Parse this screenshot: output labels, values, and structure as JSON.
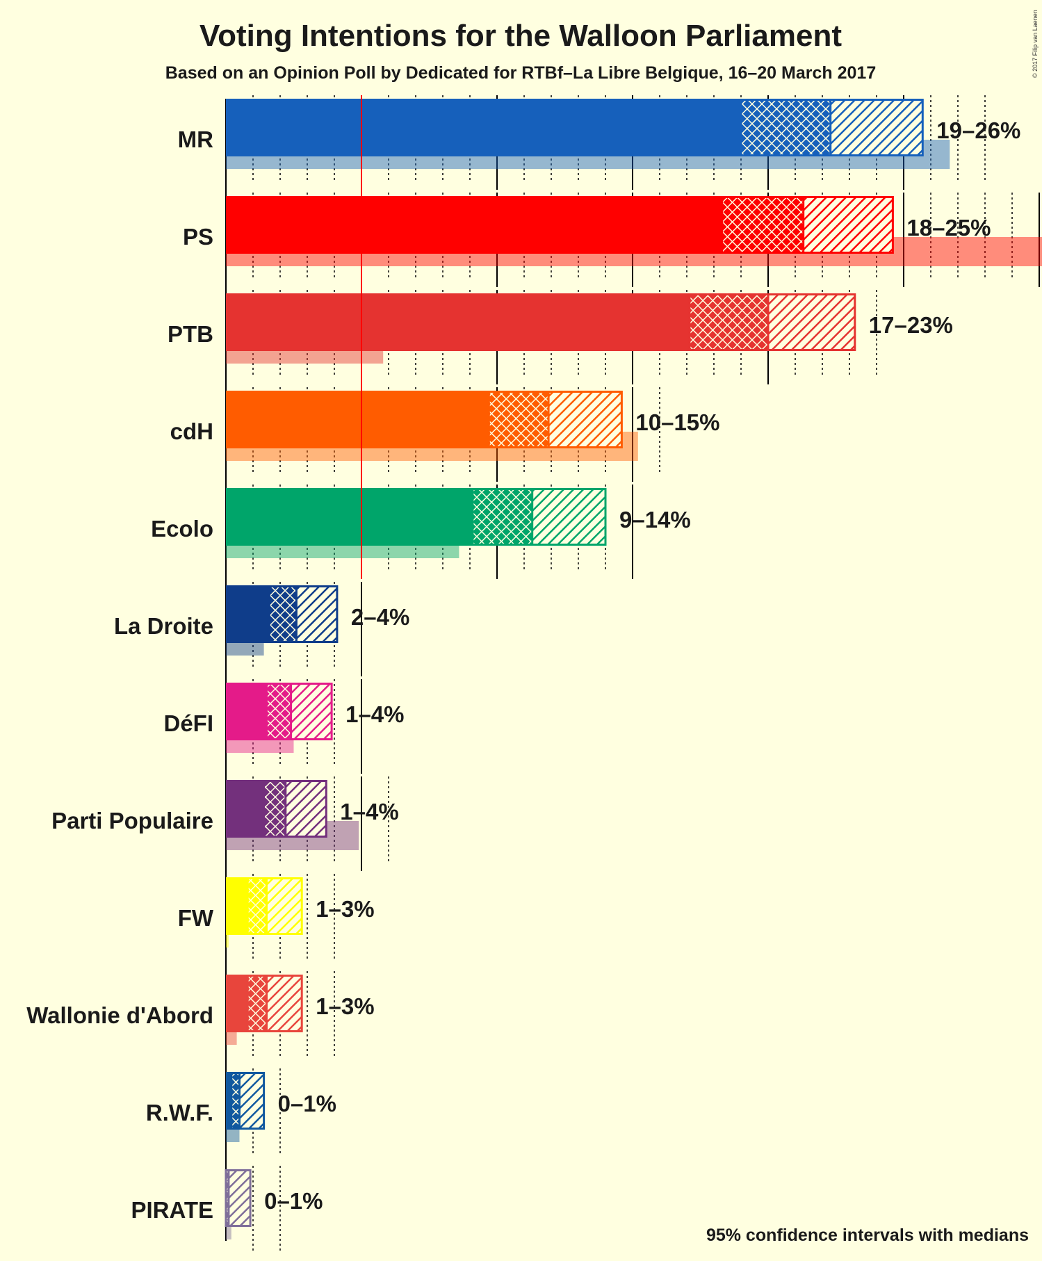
{
  "chart_data": {
    "type": "bar",
    "orientation": "horizontal",
    "title": "Voting Intentions for the Walloon Parliament",
    "subtitle": "Based on an Opinion Poll by Dedicated for RTBf–La Libre Belgique, 16–20 March 2017",
    "footnote": "95% confidence intervals with medians",
    "copyright": "© 2017 Filip van Laenen",
    "threshold": 5,
    "legend": "none",
    "parties": [
      {
        "name": "MR",
        "color": "#1660BB",
        "low": 19,
        "median": 22.3,
        "high": 25.7,
        "previous": 26.7,
        "range_label": "19–26%"
      },
      {
        "name": "PS",
        "color": "#FF0000",
        "low": 18.3,
        "median": 21.3,
        "high": 24.6,
        "previous": 30.9,
        "range_label": "18–25%"
      },
      {
        "name": "PTB",
        "color": "#E53330",
        "low": 17.1,
        "median": 20,
        "high": 23.2,
        "previous": 5.8,
        "range_label": "17–23%"
      },
      {
        "name": "cdH",
        "color": "#FF5C00",
        "low": 9.7,
        "median": 11.9,
        "high": 14.6,
        "previous": 15.2,
        "range_label": "10–15%"
      },
      {
        "name": "Ecolo",
        "color": "#00A56A",
        "low": 9.1,
        "median": 11.3,
        "high": 14,
        "previous": 8.6,
        "range_label": "9–14%"
      },
      {
        "name": "La Droite",
        "color": "#0F3D8A",
        "low": 1.6,
        "median": 2.6,
        "high": 4.1,
        "previous": 1.4,
        "range_label": "2–4%"
      },
      {
        "name": "DéFI",
        "color": "#E41B89",
        "low": 1.5,
        "median": 2.4,
        "high": 3.9,
        "previous": 2.5,
        "range_label": "1–4%"
      },
      {
        "name": "Parti Populaire",
        "color": "#73307C",
        "low": 1.4,
        "median": 2.2,
        "high": 3.7,
        "previous": 4.9,
        "range_label": "1–4%"
      },
      {
        "name": "FW",
        "color": "#FFFF00",
        "low": 0.8,
        "median": 1.5,
        "high": 2.8,
        "previous": 0.1,
        "range_label": "1–3%"
      },
      {
        "name": "Wallonie d'Abord",
        "color": "#E8453C",
        "low": 0.8,
        "median": 1.5,
        "high": 2.8,
        "previous": 0.4,
        "range_label": "1–3%"
      },
      {
        "name": "R.W.F.",
        "color": "#10589F",
        "low": 0.2,
        "median": 0.5,
        "high": 1.4,
        "previous": 0.5,
        "range_label": "0–1%"
      },
      {
        "name": "PIRATE",
        "color": "#7E6E99",
        "low": 0,
        "median": 0.1,
        "high": 0.9,
        "previous": 0.2,
        "range_label": "0–1%"
      }
    ]
  }
}
